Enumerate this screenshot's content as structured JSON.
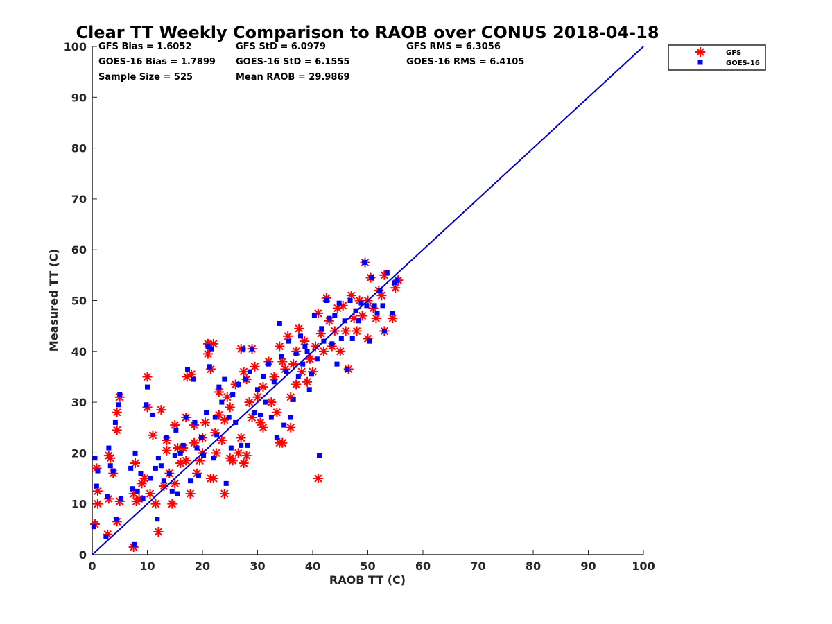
{
  "chart_data": {
    "type": "scatter",
    "title": "Clear TT Weekly Comparison to RAOB over CONUS 2018-04-18",
    "xlabel": "RAOB TT (C)",
    "ylabel": "Measured TT (C)",
    "xlim": [
      0,
      100
    ],
    "ylim": [
      0,
      100
    ],
    "xticks": [
      0,
      10,
      20,
      30,
      40,
      50,
      60,
      70,
      80,
      90,
      100
    ],
    "yticks": [
      0,
      10,
      20,
      30,
      40,
      50,
      60,
      70,
      80,
      90,
      100
    ],
    "grid": false,
    "legend_position": "top-right",
    "reference_line": {
      "name": "1:1 line",
      "x": [
        0,
        100
      ],
      "y": [
        0,
        100
      ],
      "color": "#0000CC"
    },
    "stats": {
      "gfs_bias": "GFS Bias = 1.6052",
      "goes_bias": "GOES-16 Bias = 1.7899",
      "sample_size": "Sample Size = 525",
      "gfs_std": "GFS StD = 6.0979",
      "goes_std": "GOES-16 StD = 6.1555",
      "mean_raob": "Mean RAOB = 29.9869",
      "gfs_rms": "GFS RMS = 6.3056",
      "goes_rms": "GOES-16 RMS = 6.4105"
    },
    "series": [
      {
        "name": "GFS",
        "marker": "asterisk",
        "color": "#FF0000",
        "points": [
          [
            0.5,
            6
          ],
          [
            0.8,
            17
          ],
          [
            1,
            12.5
          ],
          [
            1,
            10
          ],
          [
            2.8,
            4
          ],
          [
            3,
            11
          ],
          [
            3,
            19.5
          ],
          [
            3.3,
            19
          ],
          [
            3.8,
            16
          ],
          [
            4.5,
            24.5
          ],
          [
            4.5,
            6.5
          ],
          [
            4.5,
            28
          ],
          [
            5,
            10.5
          ],
          [
            5,
            31
          ],
          [
            7.5,
            12
          ],
          [
            7.5,
            1.5
          ],
          [
            7.8,
            18
          ],
          [
            8,
            10.5
          ],
          [
            8.5,
            11
          ],
          [
            9,
            14
          ],
          [
            9.5,
            15
          ],
          [
            10,
            35
          ],
          [
            10,
            29
          ],
          [
            10.5,
            12
          ],
          [
            11,
            23.5
          ],
          [
            11.5,
            10
          ],
          [
            12,
            4.5
          ],
          [
            12.5,
            28.5
          ],
          [
            13,
            13.5
          ],
          [
            13.5,
            20.5
          ],
          [
            13.5,
            22.5
          ],
          [
            14,
            16
          ],
          [
            14.5,
            10
          ],
          [
            15,
            14
          ],
          [
            15,
            25.5
          ],
          [
            15.5,
            21
          ],
          [
            16,
            18
          ],
          [
            16.5,
            21
          ],
          [
            17,
            18.5
          ],
          [
            17,
            27
          ],
          [
            17.2,
            35
          ],
          [
            17.8,
            12
          ],
          [
            18,
            35.5
          ],
          [
            18.5,
            25.5
          ],
          [
            18.5,
            22
          ],
          [
            19,
            16
          ],
          [
            19.5,
            18.5
          ],
          [
            20,
            20
          ],
          [
            20,
            23
          ],
          [
            20.5,
            26
          ],
          [
            21,
            41.5
          ],
          [
            21,
            39.5
          ],
          [
            21.5,
            36.5
          ],
          [
            21.5,
            15
          ],
          [
            22,
            41.5
          ],
          [
            22,
            15
          ],
          [
            22.3,
            24
          ],
          [
            22.5,
            20
          ],
          [
            23,
            27.5
          ],
          [
            23,
            32
          ],
          [
            23.5,
            22.5
          ],
          [
            24,
            12
          ],
          [
            24,
            26.5
          ],
          [
            24.5,
            31
          ],
          [
            25,
            19
          ],
          [
            25,
            29
          ],
          [
            25.5,
            18.5
          ],
          [
            26,
            33.5
          ],
          [
            26.5,
            20
          ],
          [
            27,
            23
          ],
          [
            27,
            40.5
          ],
          [
            27.5,
            36
          ],
          [
            27.5,
            18
          ],
          [
            28,
            19.5
          ],
          [
            28,
            34.5
          ],
          [
            28.5,
            30
          ],
          [
            29,
            40.5
          ],
          [
            29,
            27
          ],
          [
            29.5,
            37
          ],
          [
            30,
            31
          ],
          [
            30.5,
            26
          ],
          [
            31,
            25
          ],
          [
            31,
            33
          ],
          [
            32,
            38
          ],
          [
            32.5,
            30
          ],
          [
            33,
            35
          ],
          [
            33.5,
            28
          ],
          [
            34,
            22
          ],
          [
            34,
            41
          ],
          [
            34.5,
            22
          ],
          [
            34.5,
            38
          ],
          [
            35,
            36.5
          ],
          [
            35.5,
            43
          ],
          [
            36,
            25
          ],
          [
            36,
            31
          ],
          [
            36.5,
            37.5
          ],
          [
            37,
            40
          ],
          [
            37,
            33.5
          ],
          [
            37.5,
            44.5
          ],
          [
            38,
            36
          ],
          [
            38.5,
            42
          ],
          [
            39,
            34
          ],
          [
            39.5,
            38.5
          ],
          [
            40,
            36
          ],
          [
            40.5,
            41
          ],
          [
            41,
            47.5
          ],
          [
            41,
            15
          ],
          [
            41.5,
            43.5
          ],
          [
            42,
            40
          ],
          [
            42.5,
            50.5
          ],
          [
            43,
            46
          ],
          [
            43.5,
            41
          ],
          [
            44,
            44
          ],
          [
            44.5,
            48.5
          ],
          [
            45,
            40
          ],
          [
            45.5,
            49
          ],
          [
            46,
            44
          ],
          [
            46.5,
            36.5
          ],
          [
            47,
            51
          ],
          [
            47.5,
            46.5
          ],
          [
            48,
            44
          ],
          [
            48.5,
            50
          ],
          [
            49,
            47
          ],
          [
            49.5,
            57.5
          ],
          [
            50,
            50
          ],
          [
            50,
            42.5
          ],
          [
            50.5,
            54.5
          ],
          [
            51,
            48.5
          ],
          [
            51.5,
            46.5
          ],
          [
            52,
            52
          ],
          [
            52.5,
            51
          ],
          [
            53,
            44
          ],
          [
            53,
            55
          ],
          [
            54.5,
            46.5
          ],
          [
            55,
            52.5
          ],
          [
            55.5,
            54
          ]
        ]
      },
      {
        "name": "GOES-16",
        "marker": "square",
        "color": "#0000FF",
        "points": [
          [
            0.3,
            5.5
          ],
          [
            0.5,
            19
          ],
          [
            0.8,
            13.5
          ],
          [
            1,
            16.5
          ],
          [
            2.5,
            3.5
          ],
          [
            2.8,
            11.5
          ],
          [
            3,
            21
          ],
          [
            3.3,
            17.5
          ],
          [
            3.8,
            16.5
          ],
          [
            4.2,
            26
          ],
          [
            4.4,
            7
          ],
          [
            4.8,
            29.5
          ],
          [
            5,
            31.5
          ],
          [
            5.2,
            11
          ],
          [
            7,
            17
          ],
          [
            7.3,
            13
          ],
          [
            7.6,
            2
          ],
          [
            7.8,
            20
          ],
          [
            8.2,
            12.5
          ],
          [
            8.8,
            16
          ],
          [
            9.2,
            11
          ],
          [
            9.8,
            29.5
          ],
          [
            10,
            33
          ],
          [
            10.5,
            15
          ],
          [
            11,
            27.5
          ],
          [
            11.5,
            17
          ],
          [
            11.8,
            7
          ],
          [
            12,
            19
          ],
          [
            12.5,
            17.5
          ],
          [
            13,
            14.5
          ],
          [
            13.5,
            23
          ],
          [
            14,
            16
          ],
          [
            14.5,
            12.5
          ],
          [
            15,
            19.5
          ],
          [
            15.2,
            24.5
          ],
          [
            15.5,
            12
          ],
          [
            16,
            20
          ],
          [
            16.5,
            21.5
          ],
          [
            17,
            27
          ],
          [
            17.3,
            36.5
          ],
          [
            17.8,
            14.5
          ],
          [
            18.3,
            34.5
          ],
          [
            18.6,
            26
          ],
          [
            19,
            21
          ],
          [
            19.3,
            15.5
          ],
          [
            19.8,
            23
          ],
          [
            20.2,
            19.5
          ],
          [
            20.7,
            28
          ],
          [
            21,
            41
          ],
          [
            21.3,
            37
          ],
          [
            21.6,
            40.5
          ],
          [
            22,
            19
          ],
          [
            22.3,
            27
          ],
          [
            22.6,
            23.5
          ],
          [
            23,
            33
          ],
          [
            23.5,
            30
          ],
          [
            24,
            34.5
          ],
          [
            24.3,
            14
          ],
          [
            24.8,
            27
          ],
          [
            25.2,
            21
          ],
          [
            25.5,
            31.5
          ],
          [
            26,
            26
          ],
          [
            26.5,
            33.5
          ],
          [
            27,
            21.5
          ],
          [
            27.4,
            40.5
          ],
          [
            27.8,
            34.5
          ],
          [
            28.2,
            21.5
          ],
          [
            28.6,
            36
          ],
          [
            29,
            40.5
          ],
          [
            29.5,
            28
          ],
          [
            30,
            32.5
          ],
          [
            30.5,
            27.5
          ],
          [
            31,
            35
          ],
          [
            31.5,
            30
          ],
          [
            32,
            37.5
          ],
          [
            32.5,
            27
          ],
          [
            33,
            34
          ],
          [
            33.5,
            23
          ],
          [
            34,
            45.5
          ],
          [
            34.4,
            39
          ],
          [
            34.8,
            25.5
          ],
          [
            35.2,
            36
          ],
          [
            35.6,
            42
          ],
          [
            36,
            27
          ],
          [
            36.5,
            30.5
          ],
          [
            37,
            39.5
          ],
          [
            37.4,
            35
          ],
          [
            37.8,
            43
          ],
          [
            38.2,
            37.5
          ],
          [
            38.6,
            41
          ],
          [
            39,
            40
          ],
          [
            39.4,
            32.5
          ],
          [
            39.8,
            35.5
          ],
          [
            40.3,
            47
          ],
          [
            40.8,
            38.5
          ],
          [
            41.2,
            19.5
          ],
          [
            41.6,
            44.5
          ],
          [
            42,
            42
          ],
          [
            42.5,
            50
          ],
          [
            43,
            46.5
          ],
          [
            43.5,
            41.5
          ],
          [
            44,
            47
          ],
          [
            44.4,
            37.5
          ],
          [
            44.8,
            49.5
          ],
          [
            45.2,
            42.5
          ],
          [
            45.8,
            46
          ],
          [
            46.2,
            36.5
          ],
          [
            46.8,
            50
          ],
          [
            47.2,
            42.5
          ],
          [
            47.8,
            48
          ],
          [
            48.3,
            46
          ],
          [
            48.8,
            49.5
          ],
          [
            49.4,
            57.5
          ],
          [
            49.8,
            49
          ],
          [
            50.3,
            42
          ],
          [
            50.7,
            54.5
          ],
          [
            51.2,
            49
          ],
          [
            51.7,
            47.5
          ],
          [
            52.2,
            52
          ],
          [
            52.7,
            49
          ],
          [
            53,
            44
          ],
          [
            53.5,
            55.5
          ],
          [
            54.5,
            47.5
          ],
          [
            54.8,
            53.5
          ],
          [
            55.3,
            54
          ]
        ]
      }
    ]
  }
}
